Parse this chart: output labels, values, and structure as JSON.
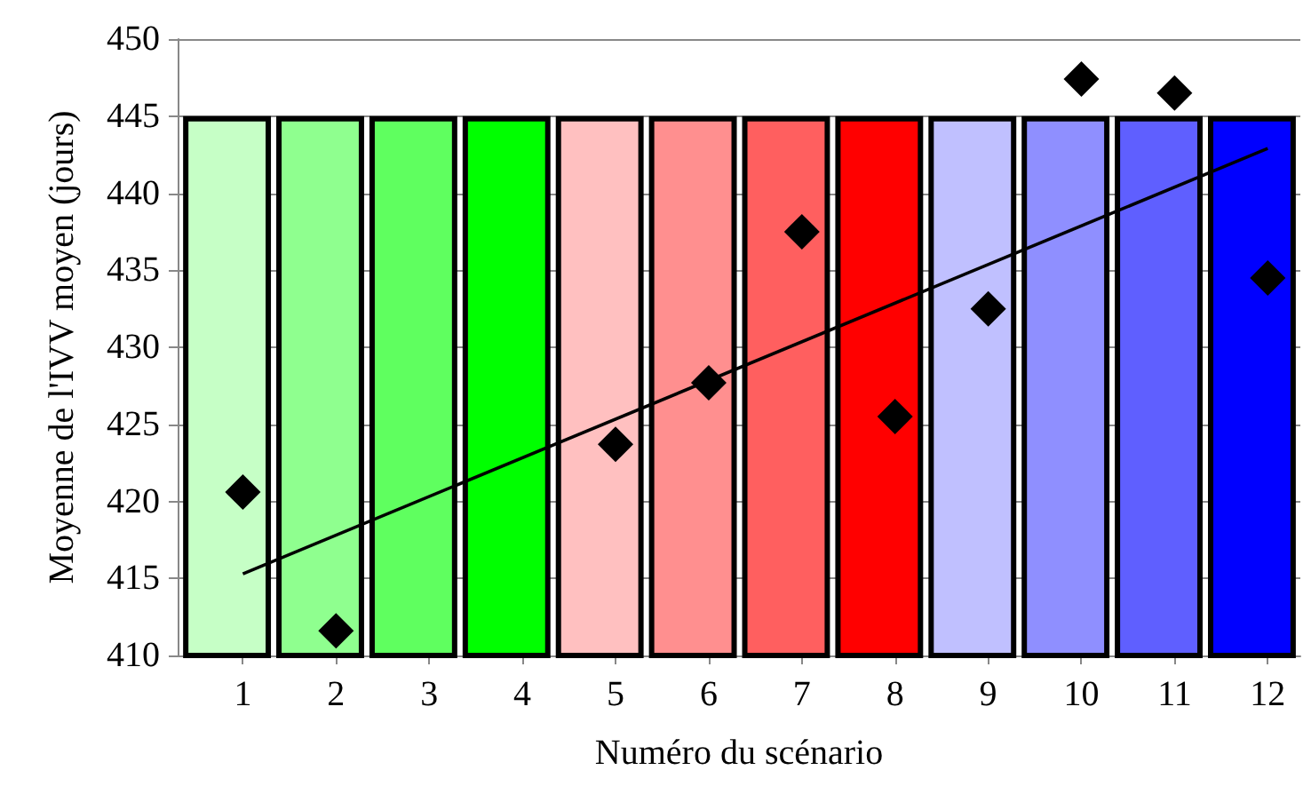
{
  "chart_data": {
    "type": "scatter",
    "xlabel": "Numéro du scénario",
    "ylabel": "Moyenne de l'IVV moyen (jours)",
    "xlim": [
      0.3,
      12.35
    ],
    "xticks": [
      1,
      2,
      3,
      4,
      5,
      6,
      7,
      8,
      9,
      10,
      11,
      12
    ],
    "ylim": [
      410,
      450
    ],
    "yticks": [
      410,
      415,
      420,
      425,
      430,
      435,
      440,
      445,
      450
    ],
    "grid": "y",
    "series": [
      {
        "type": "bar",
        "x": [
          0.83,
          1.83,
          2.83,
          3.83,
          4.83,
          5.83,
          6.83,
          7.83,
          8.83,
          9.83,
          10.83,
          11.83
        ],
        "values": [
          445,
          445,
          445,
          445,
          445,
          445,
          445,
          445,
          445,
          445,
          445,
          445
        ],
        "colors": [
          "#c6ffc6",
          "#8fff8f",
          "#5fff5f",
          "#00ff00",
          "#ffc0c0",
          "#ff8f8f",
          "#ff5f5f",
          "#ff0000",
          "#c0c0ff",
          "#8f8fff",
          "#5f5fff",
          "#0000ff"
        ]
      },
      {
        "marker": "diamond",
        "color": "#000000",
        "x": [
          1,
          2,
          5,
          6,
          7,
          8,
          9,
          10,
          11,
          12
        ],
        "values": [
          420.6,
          411.6,
          423.7,
          427.7,
          437.5,
          425.5,
          432.5,
          447.4,
          446.5,
          434.5
        ]
      },
      {
        "type": "line",
        "marker": "none",
        "color": "#000000",
        "x": [
          1,
          12
        ],
        "values": [
          415.3,
          442.9
        ]
      }
    ]
  }
}
